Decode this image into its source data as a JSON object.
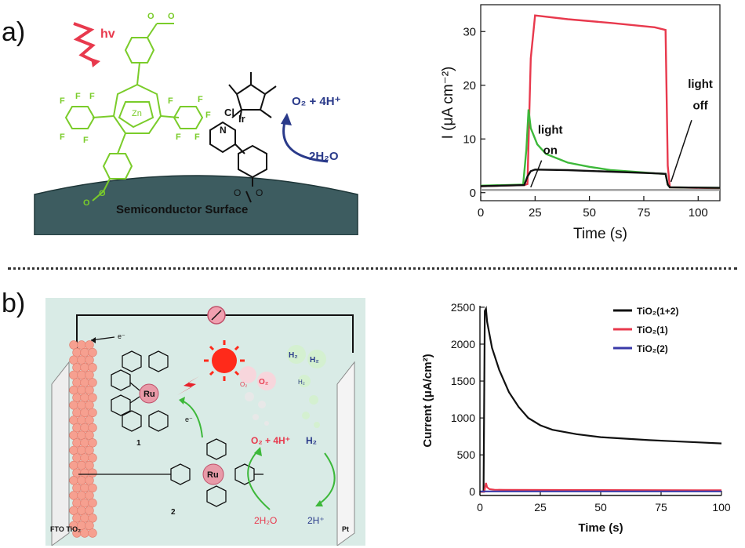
{
  "panel_a": {
    "label": "a)",
    "scheme": {
      "hv": "hv",
      "metal": "Zn",
      "iridium": "Ir",
      "chloride": "Cl",
      "pyridine_n": "N",
      "products": "O₂ + 4H⁺",
      "reactant": "2H₂O",
      "surface": "Semiconductor Surface"
    }
  },
  "panel_b": {
    "label": "b)",
    "scheme": {
      "electrode_left": "FTO TiO₂",
      "electrode_right": "Pt",
      "electron1": "e⁻",
      "electron2": "e⁻",
      "dye1": "1",
      "dye2": "2",
      "ru": "Ru",
      "o2": "O₂",
      "h2": "H₂",
      "oxidation": "O₂ + 4H⁺",
      "water": "2H₂O",
      "protons": "2H⁺"
    }
  },
  "colors": {
    "red": "#e8394d",
    "green": "#3db83a",
    "black": "#111111",
    "gray": "#9a9a9a",
    "blue": "#3a3aa8",
    "surface": "#3d5c60",
    "panel_bg": "#d9ebe6"
  },
  "chart_data": [
    {
      "type": "line",
      "xlabel": "Time (s)",
      "ylabel": "I (μA cm⁻²)",
      "xlim": [
        0,
        110
      ],
      "ylim": [
        -1.5,
        35
      ],
      "xticks": [
        0,
        25,
        50,
        75,
        100
      ],
      "yticks": [
        0,
        10,
        20,
        30
      ],
      "annotations": [
        "light on",
        "light off"
      ],
      "series": [
        {
          "color": "red",
          "x": [
            0,
            20,
            21.5,
            23,
            25,
            40,
            60,
            80,
            85,
            86,
            87,
            110
          ],
          "y": [
            1.2,
            1.4,
            1.6,
            25,
            33,
            32.3,
            31.6,
            30.8,
            30.3,
            5,
            1,
            0.8
          ]
        },
        {
          "color": "green",
          "x": [
            0,
            19.5,
            21,
            22,
            23,
            26,
            30,
            40,
            50,
            60,
            70,
            80,
            85,
            86,
            87,
            110
          ],
          "y": [
            1.3,
            1.5,
            8,
            15.5,
            12,
            9,
            7.2,
            5.6,
            4.8,
            4.2,
            3.9,
            3.6,
            3.5,
            1.5,
            1,
            0.9
          ]
        },
        {
          "color": "black",
          "x": [
            0,
            20,
            21.5,
            23,
            25,
            40,
            60,
            80,
            85,
            86,
            87,
            110
          ],
          "y": [
            1.2,
            1.4,
            3,
            4,
            4.3,
            4.2,
            3.9,
            3.6,
            3.5,
            1.5,
            1,
            0.9
          ]
        },
        {
          "color": "gray",
          "x": [
            0,
            110
          ],
          "y": [
            0.5,
            0.5
          ]
        }
      ]
    },
    {
      "type": "line",
      "xlabel": "Time (s)",
      "ylabel": "Current (μA/cm²)",
      "xlim": [
        0,
        100
      ],
      "ylim": [
        -50,
        2520
      ],
      "xticks": [
        0,
        25,
        50,
        75,
        100
      ],
      "yticks": [
        0,
        500,
        1000,
        1500,
        2000,
        2500
      ],
      "legend": "top-right",
      "series": [
        {
          "name": "TiO₂(1+2)",
          "color": "black",
          "x": [
            0,
            1.5,
            2,
            2.5,
            3,
            5,
            8,
            12,
            16,
            20,
            25,
            30,
            40,
            50,
            60,
            70,
            80,
            90,
            100
          ],
          "y": [
            0,
            0,
            2450,
            2480,
            2300,
            1950,
            1650,
            1350,
            1150,
            1000,
            900,
            840,
            780,
            740,
            720,
            700,
            685,
            670,
            655
          ]
        },
        {
          "name": "TiO₂(1)",
          "color": "red",
          "x": [
            0,
            1.8,
            2.5,
            3,
            4,
            6,
            10,
            100
          ],
          "y": [
            0,
            0,
            120,
            60,
            35,
            28,
            25,
            20
          ]
        },
        {
          "name": "TiO₂(2)",
          "color": "blue",
          "x": [
            0,
            100
          ],
          "y": [
            5,
            5
          ]
        }
      ]
    }
  ]
}
